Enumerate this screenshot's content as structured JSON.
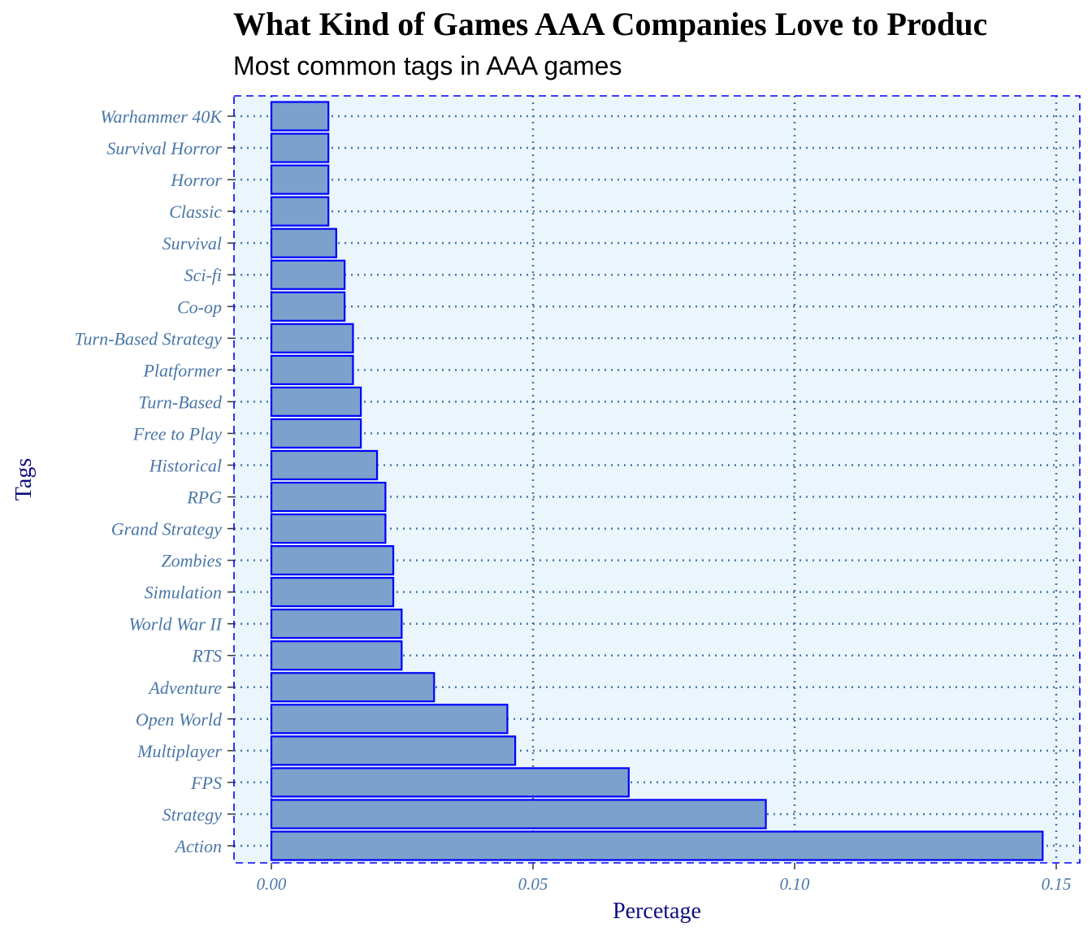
{
  "chart_data": {
    "type": "bar",
    "orientation": "horizontal",
    "title": "What Kind of Games AAA Companies Love to Produc",
    "subtitle": "Most common tags in AAA games",
    "xlabel": "Percetage",
    "ylabel": "Tags",
    "xlim": [
      -0.0074,
      0.1517
    ],
    "x_ticks": [
      0.0,
      0.05,
      0.1,
      0.15
    ],
    "x_tick_labels": [
      "0.00",
      "0.05",
      "0.10",
      "0.15"
    ],
    "grid": true,
    "categories": [
      "Action",
      "Strategy",
      "FPS",
      "Multiplayer",
      "Open World",
      "Adventure",
      "RTS",
      "World War II",
      "Simulation",
      "Zombies",
      "Grand Strategy",
      "RPG",
      "Historical",
      "Free to Play",
      "Turn-Based",
      "Platformer",
      "Turn-Based Strategy",
      "Co-op",
      "Sci-fi",
      "Survival",
      "Classic",
      "Horror",
      "Survival Horror",
      "Warhammer 40K"
    ],
    "values": [
      0.1474,
      0.0945,
      0.0683,
      0.0466,
      0.0451,
      0.0311,
      0.0249,
      0.0249,
      0.0233,
      0.0233,
      0.0218,
      0.0218,
      0.0202,
      0.0171,
      0.0171,
      0.0156,
      0.0156,
      0.014,
      0.014,
      0.0124,
      0.0109,
      0.0109,
      0.0109,
      0.0109
    ],
    "colors": {
      "bar_fill": "#7ba1cc",
      "bar_stroke": "#0000ff",
      "panel_bg": "#eaf5fc",
      "grid": "#4a77a8",
      "panel_border": "#0000ff",
      "tick_text": "#4a77a8",
      "axis_title": "#0d0d80"
    }
  }
}
